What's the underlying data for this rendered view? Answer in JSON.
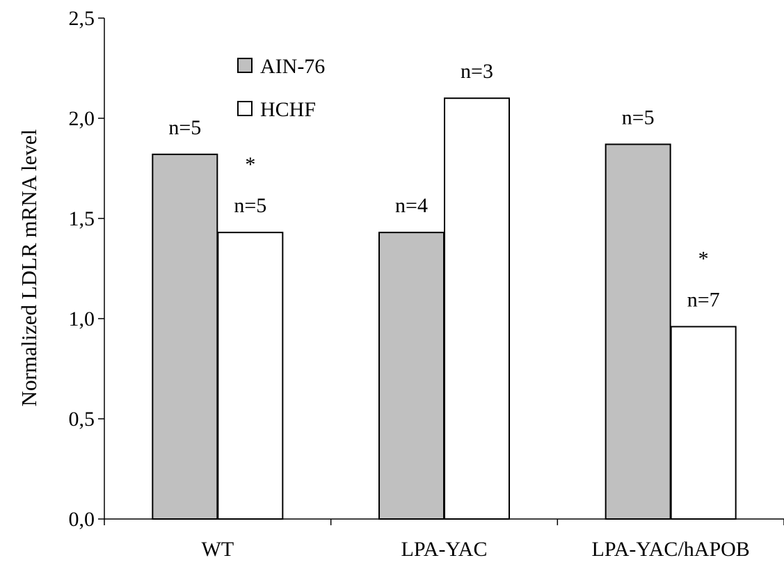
{
  "chart_data": {
    "type": "bar",
    "title": "",
    "xlabel": "",
    "ylabel": "Normalized LDLR mRNA level",
    "categories": [
      "WT",
      "LPA-YAC",
      "LPA-YAC/hAPOB"
    ],
    "series": [
      {
        "name": "AIN-76",
        "values": [
          1.82,
          1.43,
          1.87
        ],
        "color": "#c0c0c0",
        "annotations": [
          "n=5",
          "n=4",
          "n=5"
        ]
      },
      {
        "name": "HCHF",
        "values": [
          1.43,
          2.1,
          0.96
        ],
        "color": "#ffffff",
        "annotations": [
          "*\nn=5",
          "n=3",
          "*\nn=7"
        ]
      }
    ],
    "ylim": [
      0,
      2.5
    ],
    "yticks": [
      0,
      0.5,
      1.0,
      1.5,
      2.0,
      2.5
    ],
    "ytick_labels": [
      "0,0",
      "0,5",
      "1,0",
      "1,5",
      "2,0",
      "2,5"
    ],
    "legend_position": "top-left",
    "grid": false
  }
}
